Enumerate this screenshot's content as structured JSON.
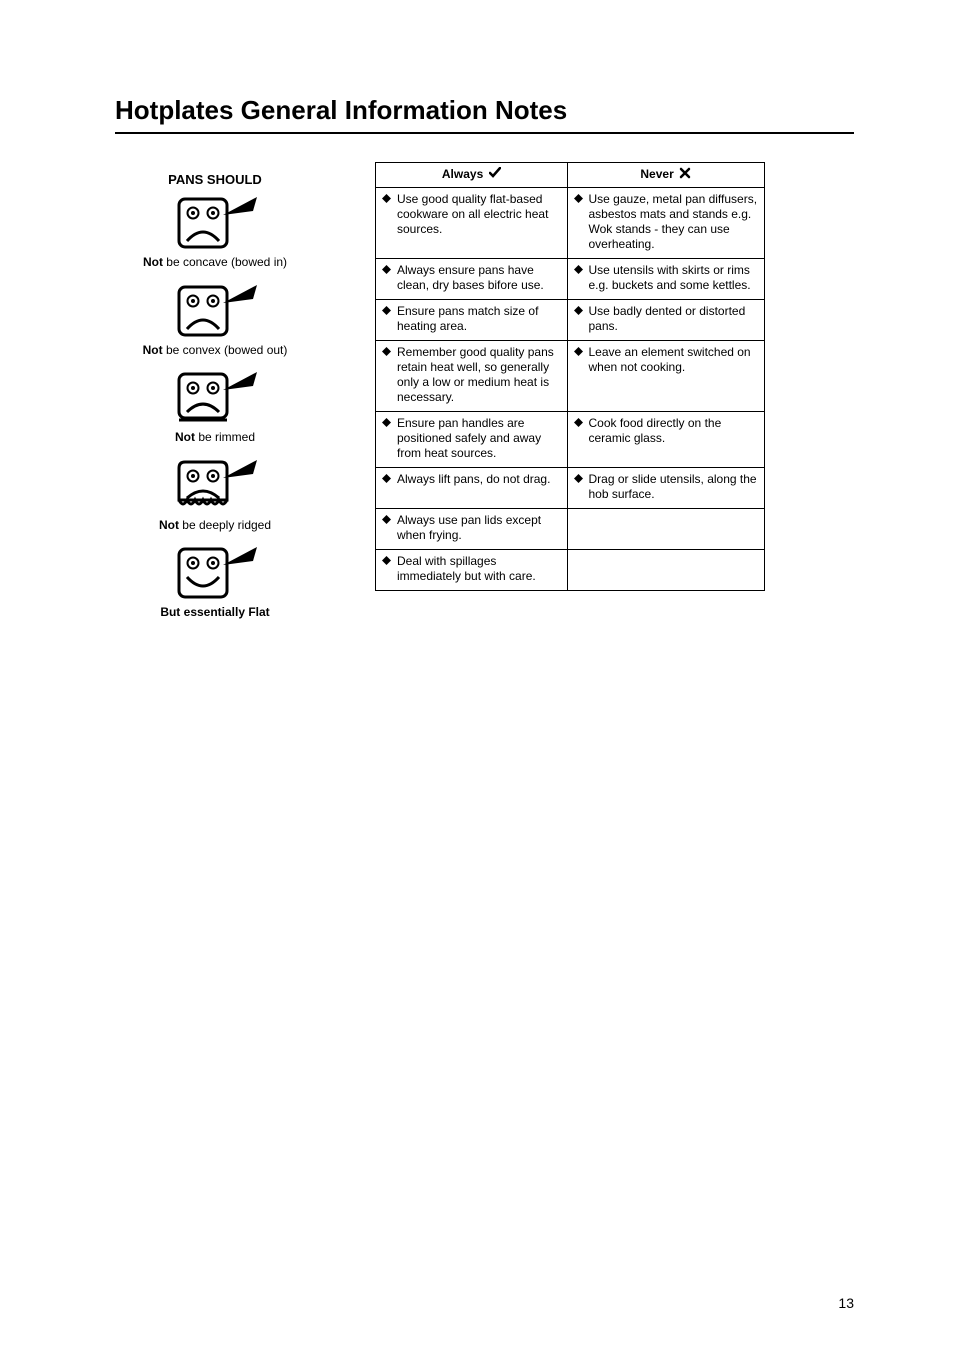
{
  "page_title": "Hotplates General Information Notes",
  "page_number": "13",
  "pans_header": "PANS SHOULD",
  "pan_items": [
    {
      "bold": "Not",
      "rest": " be concave (bowed in)"
    },
    {
      "bold": "Not",
      "rest": " be convex (bowed out)"
    },
    {
      "bold": "Not",
      "rest": " be rimmed"
    },
    {
      "bold": "Not",
      "rest": " be deeply ridged"
    },
    {
      "bold": "But essentially Flat",
      "rest": ""
    }
  ],
  "table": {
    "header_always": "Always",
    "header_never": "Never",
    "rows": [
      {
        "always": "Use good quality flat-based cookware on all electric heat sources.",
        "never": "Use gauze, metal pan diffusers, asbestos mats and stands e.g. Wok stands - they can use overheating."
      },
      {
        "always": "Always ensure pans have clean, dry bases bifore use.",
        "never": "Use utensils with skirts or rims e.g. buckets and some kettles."
      },
      {
        "always": "Ensure pans match size of heating area.",
        "never": "Use badly dented or distorted pans."
      },
      {
        "always": "Remember good quality pans retain heat well, so generally only a low or medium heat is necessary.",
        "never": "Leave an element switched on when not cooking."
      },
      {
        "always": "Ensure pan handles are positioned safely and away from heat sources.",
        "never": "Cook food directly on the ceramic glass."
      },
      {
        "always": "Always lift pans, do not drag.",
        "never": "Drag or slide utensils, along the hob surface."
      },
      {
        "always": "Always use pan lids except when frying.",
        "never": ""
      },
      {
        "always": "Deal with spillages immediately but with care.",
        "never": ""
      }
    ]
  },
  "colors": {
    "text": "#000000",
    "bg": "#ffffff",
    "border": "#000000"
  }
}
